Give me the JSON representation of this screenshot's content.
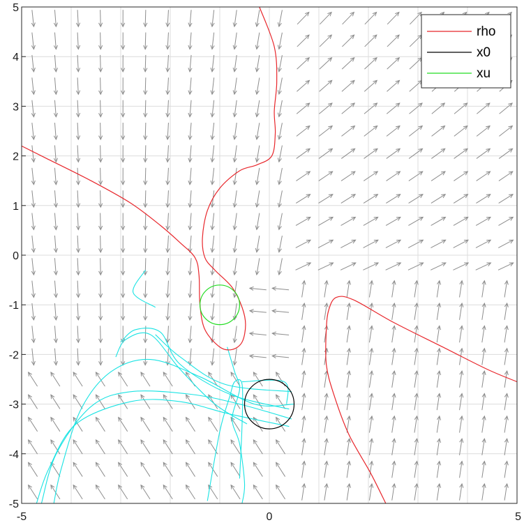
{
  "chart_data": {
    "type": "phase-portrait",
    "xlim": [
      -5,
      5
    ],
    "ylim": [
      -5,
      5
    ],
    "x_ticks": [
      "-5",
      "0",
      "5"
    ],
    "y_ticks": [
      "5",
      "4",
      "3",
      "2",
      "1",
      "0",
      "-1",
      "-2",
      "-3",
      "-4",
      "-5"
    ],
    "grid": true,
    "legend_position": "top-right",
    "colors": {
      "rho": "#e8262b",
      "x0": "#000000",
      "xu": "#22dd22",
      "trajectory": "#19e3e3",
      "quiver": "#8c8c8c",
      "grid": "#dcdcdc"
    },
    "series": [
      {
        "name": "rho",
        "segments": [
          [
            [
              -5,
              2.2
            ],
            [
              -4.5,
              1.95
            ],
            [
              -3.6,
              1.5
            ],
            [
              -2.8,
              1.05
            ],
            [
              -2.2,
              0.6
            ],
            [
              -1.8,
              0.25
            ],
            [
              -1.5,
              -0.05
            ],
            [
              -1.42,
              -0.4
            ],
            [
              -1.4,
              -1.0
            ],
            [
              -1.3,
              -1.5
            ],
            [
              -1.0,
              -1.85
            ],
            [
              -0.75,
              -1.9
            ],
            [
              -0.55,
              -1.75
            ],
            [
              -0.48,
              -1.4
            ],
            [
              -0.55,
              -1.05
            ],
            [
              -0.75,
              -0.65
            ],
            [
              -1.1,
              -0.3
            ],
            [
              -1.3,
              -0.05
            ],
            [
              -1.35,
              0.35
            ],
            [
              -1.25,
              0.9
            ],
            [
              -1.0,
              1.35
            ],
            [
              -0.6,
              1.7
            ],
            [
              -0.25,
              1.82
            ],
            [
              0.05,
              2.0
            ],
            [
              0.12,
              2.45
            ],
            [
              0.1,
              2.9
            ],
            [
              0.15,
              3.5
            ],
            [
              0.1,
              4.2
            ],
            [
              -0.2,
              5
            ]
          ],
          [
            [
              2.35,
              -5
            ],
            [
              2.05,
              -4.4
            ],
            [
              1.6,
              -3.6
            ],
            [
              1.3,
              -2.8
            ],
            [
              1.15,
              -2.2
            ],
            [
              1.15,
              -1.5
            ],
            [
              1.2,
              -1.1
            ],
            [
              1.35,
              -0.85
            ],
            [
              1.7,
              -0.9
            ],
            [
              2.5,
              -1.35
            ],
            [
              3.5,
              -1.85
            ],
            [
              4.4,
              -2.3
            ],
            [
              5,
              -2.55
            ]
          ]
        ]
      },
      {
        "name": "x0",
        "center": [
          0,
          -3
        ],
        "radius": 0.5
      },
      {
        "name": "xu",
        "center": [
          -1,
          -1
        ],
        "radius": 0.4
      }
    ],
    "trajectories": [
      [
        [
          -2.5,
          -0.3
        ],
        [
          -2.75,
          -0.75
        ],
        [
          -2.3,
          -1.05
        ]
      ],
      [
        [
          -0.45,
          -3.4
        ],
        [
          -1.1,
          -3.0
        ],
        [
          -1.8,
          -2.3
        ],
        [
          -2.4,
          -1.6
        ],
        [
          -2.9,
          -1.7
        ],
        [
          -3.1,
          -2.05
        ]
      ],
      [
        [
          0.4,
          -3.1
        ],
        [
          -0.8,
          -2.8
        ],
        [
          -1.8,
          -2.2
        ],
        [
          -2.2,
          -1.55
        ],
        [
          -2.7,
          -1.5
        ],
        [
          -3.0,
          -1.75
        ]
      ],
      [
        [
          0.45,
          -2.75
        ],
        [
          -0.9,
          -2.6
        ],
        [
          -1.8,
          -2.05
        ],
        [
          -2.3,
          -1.6
        ]
      ],
      [
        [
          0.5,
          -3.0
        ],
        [
          -0.3,
          -3.0
        ],
        [
          -1.4,
          -2.45
        ],
        [
          -2.4,
          -2.1
        ],
        [
          -3.2,
          -2.35
        ],
        [
          -3.8,
          -3.1
        ],
        [
          -4.2,
          -4.3
        ],
        [
          -4.35,
          -5
        ]
      ],
      [
        [
          0.45,
          -3.3
        ],
        [
          -0.6,
          -3.0
        ],
        [
          -1.6,
          -2.8
        ],
        [
          -2.8,
          -2.75
        ],
        [
          -3.6,
          -3.05
        ],
        [
          -4.3,
          -4.0
        ],
        [
          -4.6,
          -5
        ]
      ],
      [
        [
          0.4,
          -3.45
        ],
        [
          -0.8,
          -3.2
        ],
        [
          -1.8,
          -2.95
        ],
        [
          -2.8,
          -2.95
        ],
        [
          -3.9,
          -3.4
        ],
        [
          -4.45,
          -4.3
        ],
        [
          -4.7,
          -5
        ]
      ],
      [
        [
          -0.85,
          -1.85
        ],
        [
          -0.7,
          -2.35
        ],
        [
          -0.6,
          -2.7
        ],
        [
          -0.75,
          -3.3
        ],
        [
          -0.6,
          -3.8
        ],
        [
          -0.5,
          -4.6
        ],
        [
          -0.55,
          -5
        ]
      ],
      [
        [
          -1.5,
          -5
        ],
        [
          -0.6,
          -5
        ]
      ],
      [
        [
          -0.55,
          -2.55
        ],
        [
          0.3,
          -2.55
        ],
        [
          0.35,
          -3.0
        ]
      ],
      [
        [
          -1.25,
          -4.95
        ],
        [
          -1.0,
          -3.55
        ],
        [
          -0.8,
          -2.85
        ],
        [
          -0.7,
          -2.55
        ],
        [
          -0.55,
          -2.6
        ],
        [
          -0.55,
          -3.4
        ],
        [
          -0.6,
          -4.5
        ]
      ]
    ]
  }
}
